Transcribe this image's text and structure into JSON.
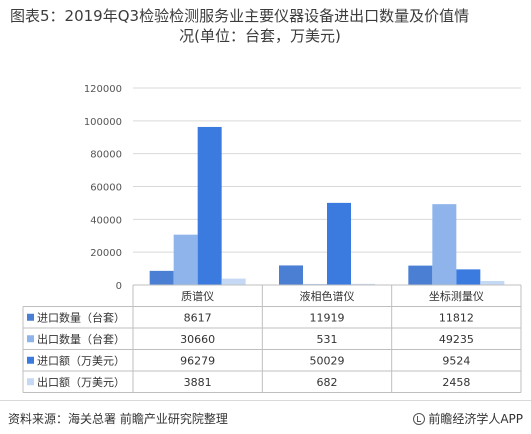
{
  "title_line1": "图表5：2019年Q3检验检测服务业主要仪器设备进出口数量及价值情",
  "title_line2": "况(单位：台套，万美元)",
  "source": "资料来源：海关总署  前瞻产业研究院整理",
  "app_label": "前瞻经济学人APP",
  "chart_data": {
    "type": "bar",
    "categories": [
      "质谱仪",
      "液相色谱仪",
      "坐标测量仪"
    ],
    "yticks": [
      "0",
      "20000",
      "40000",
      "60000",
      "80000",
      "100000",
      "120000"
    ],
    "ylim": [
      0,
      120000
    ],
    "series": [
      {
        "name": "进口数量（台套）",
        "color": "#4a7fd4",
        "values": [
          8617,
          11919,
          11812
        ]
      },
      {
        "name": "出口数量（台套）",
        "color": "#8fb4ec",
        "values": [
          30660,
          531,
          49235
        ]
      },
      {
        "name": "进口额（万美元）",
        "color": "#3b7be0",
        "values": [
          96279,
          50029,
          9524
        ]
      },
      {
        "name": "出口额（万美元）",
        "color": "#c5d9f5",
        "values": [
          3881,
          682,
          2458
        ]
      }
    ],
    "grid": true,
    "legend": "table-below"
  }
}
